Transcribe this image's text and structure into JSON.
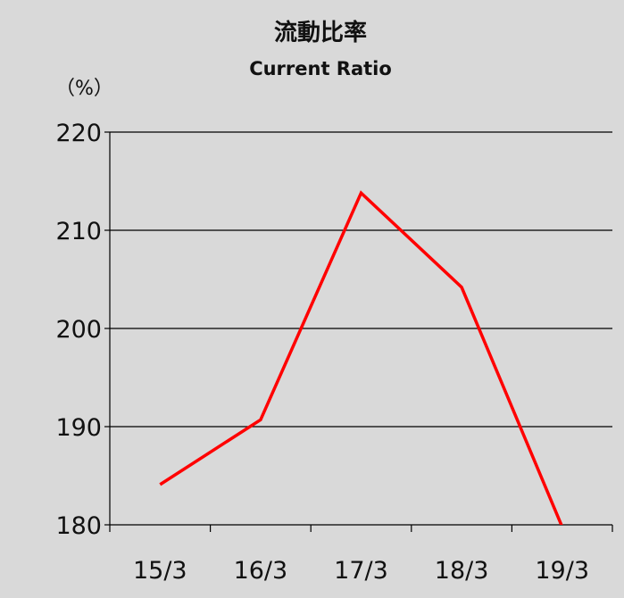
{
  "chart_data": {
    "type": "line",
    "title": "流動比率",
    "subtitle": "Current Ratio",
    "unit_label": "（%）",
    "categories": [
      "15/3",
      "16/3",
      "17/3",
      "18/3",
      "19/3"
    ],
    "series": [
      {
        "values": [
          184.1,
          190.7,
          213.8,
          204.2,
          179.8
        ],
        "color": "#ff0000"
      }
    ],
    "ylim": [
      180,
      220
    ],
    "yticks": [
      "180",
      "190",
      "200",
      "210",
      "220"
    ],
    "grid": true,
    "legend": "none",
    "background": "#d9d9d9"
  }
}
